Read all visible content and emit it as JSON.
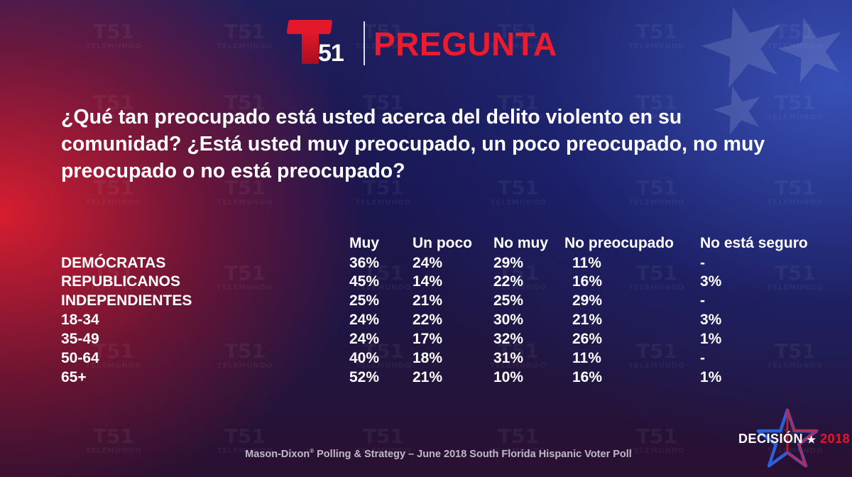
{
  "header": {
    "logo_number": "51",
    "title": "PREGUNTA"
  },
  "watermark": {
    "logo": "51",
    "text": "TELEMUNDO"
  },
  "question": "¿Qué tan preocupado está usted acerca del delito violento en su comunidad? ¿Está usted muy preocupado, un poco preocupado, no muy preocupado o no está preocupado?",
  "table": {
    "columns": [
      "Muy",
      "Un poco",
      "No muy",
      "No preocupado",
      "No está seguro"
    ],
    "rows": [
      {
        "label": "DEMÓCRATAS",
        "values": [
          "36%",
          "24%",
          "29%",
          "11%",
          "-"
        ]
      },
      {
        "label": "REPUBLICANOS",
        "values": [
          "45%",
          "14%",
          "22%",
          "16%",
          "3%"
        ]
      },
      {
        "label": "INDEPENDIENTES",
        "values": [
          "25%",
          "21%",
          "25%",
          "29%",
          "-"
        ]
      },
      {
        "label": "18-34",
        "values": [
          "24%",
          "22%",
          "30%",
          "21%",
          "3%"
        ]
      },
      {
        "label": "35-49",
        "values": [
          "24%",
          "17%",
          "32%",
          "26%",
          "1%"
        ]
      },
      {
        "label": "50-64",
        "values": [
          "40%",
          "18%",
          "31%",
          "11%",
          "-"
        ]
      },
      {
        "label": "65+",
        "values": [
          "52%",
          "21%",
          "10%",
          "16%",
          "1%"
        ]
      }
    ]
  },
  "footer": {
    "source_part1": "Mason-Dixon",
    "source_mark": "®",
    "source_part2": " Polling & Strategy – June 2018 South Florida Hispanic Voter Poll"
  },
  "badge": {
    "word": "DECISIÓN",
    "star": "★",
    "year": "2018"
  },
  "colors": {
    "accent_red": "#ea1c2e",
    "text": "#ffffff"
  }
}
